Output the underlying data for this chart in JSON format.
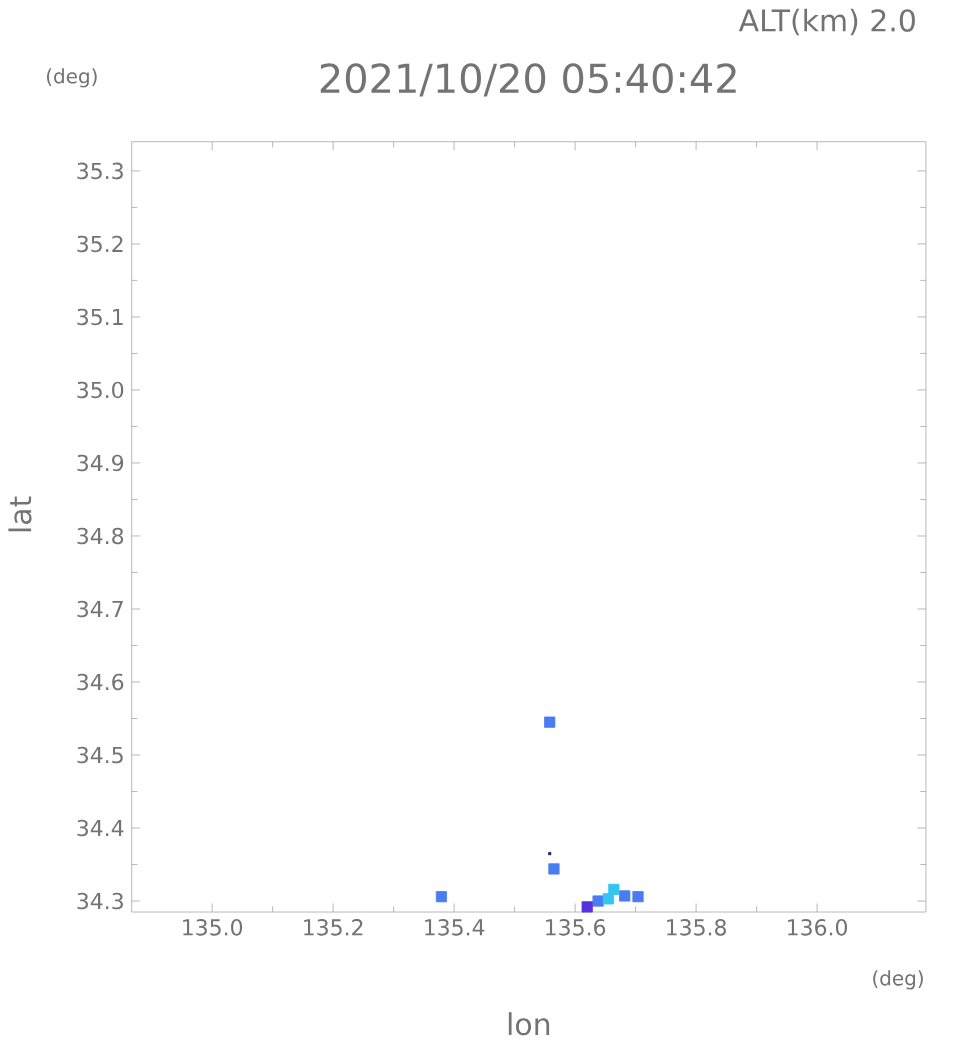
{
  "chart_data": {
    "type": "scatter",
    "title": "2021/10/20 05:40:42",
    "subtitle": "ALT(km) 2.0",
    "xlabel": "lon",
    "ylabel": "lat",
    "annotations": [
      "(deg)",
      "(deg)"
    ],
    "xlim": [
      134.867,
      136.18
    ],
    "ylim": [
      34.285,
      35.34
    ],
    "xticks": [
      {
        "value": 135.0,
        "label": "135.0"
      },
      {
        "value": 135.2,
        "label": "135.2"
      },
      {
        "value": 135.4,
        "label": "135.4"
      },
      {
        "value": 135.6,
        "label": "135.6"
      },
      {
        "value": 135.8,
        "label": "135.8"
      },
      {
        "value": 136.0,
        "label": "136.0"
      }
    ],
    "yticks": [
      {
        "value": 34.3,
        "label": "34.3"
      },
      {
        "value": 34.4,
        "label": "34.4"
      },
      {
        "value": 34.5,
        "label": "34.5"
      },
      {
        "value": 34.6,
        "label": "34.6"
      },
      {
        "value": 34.7,
        "label": "34.7"
      },
      {
        "value": 34.8,
        "label": "34.8"
      },
      {
        "value": 34.9,
        "label": "34.9"
      },
      {
        "value": 35.0,
        "label": "35.0"
      },
      {
        "value": 35.1,
        "label": "35.1"
      },
      {
        "value": 35.2,
        "label": "35.2"
      },
      {
        "value": 35.3,
        "label": "35.3"
      }
    ],
    "marker": "square",
    "grid": false,
    "series": [
      {
        "color": "#4a7cf0",
        "x": [
          135.379,
          135.565,
          135.558,
          135.638,
          135.682,
          135.704
        ],
        "values": [
          34.306,
          34.344,
          34.545,
          34.3,
          34.307,
          34.306
        ]
      },
      {
        "color": "#33c4f0",
        "x": [
          135.664,
          135.655
        ],
        "values": [
          34.316,
          34.303
        ]
      },
      {
        "color": "#5533dd",
        "x": [
          135.62
        ],
        "values": [
          34.292
        ]
      },
      {
        "color": "#222266",
        "x": [
          135.558
        ],
        "values": [
          34.365
        ]
      }
    ]
  }
}
